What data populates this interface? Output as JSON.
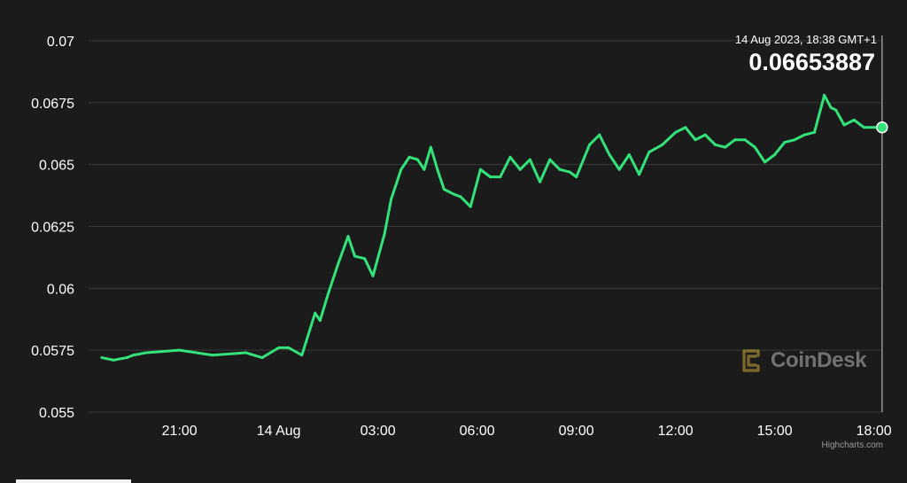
{
  "tooltip": {
    "time": "14 Aug 2023, 18:38 GMT+1",
    "value": "0.06653887"
  },
  "watermark": "CoinDesk",
  "credits": "Highcharts.com",
  "colors": {
    "up": "#33e37a",
    "down": "#e5332a",
    "grid": "#3a3a3a",
    "background": "#1b1b1b"
  },
  "chart_data": {
    "type": "line",
    "title": "",
    "xlabel": "",
    "ylabel": "",
    "ylim": [
      0.055,
      0.07
    ],
    "yticks": [
      "0.055",
      "0.0575",
      "0.06",
      "0.0625",
      "0.065",
      "0.0675",
      "0.07"
    ],
    "xlim": [
      -2.75,
      21.25
    ],
    "xticks": [
      {
        "label": "21:00",
        "x": 0
      },
      {
        "label": "14 Aug",
        "x": 3
      },
      {
        "label": "03:00",
        "x": 6
      },
      {
        "label": "06:00",
        "x": 9
      },
      {
        "label": "09:00",
        "x": 12
      },
      {
        "label": "12:00",
        "x": 15
      },
      {
        "label": "15:00",
        "x": 18
      },
      {
        "label": "18:00",
        "x": 21
      }
    ],
    "grid": true,
    "legend": "none",
    "series": [
      {
        "color_up": "#33e37a",
        "color_down": "#e5332a",
        "x": [
          -2.35,
          -2.0,
          -1.6,
          -1.4,
          -1.0,
          0.0,
          1.0,
          2.0,
          2.5,
          3.0,
          3.3,
          3.7,
          4.1,
          4.25,
          4.5,
          4.8,
          5.1,
          5.3,
          5.6,
          5.85,
          6.2,
          6.4,
          6.7,
          6.95,
          7.2,
          7.4,
          7.6,
          7.8,
          8.0,
          8.3,
          8.5,
          8.8,
          9.1,
          9.4,
          9.7,
          10.0,
          10.3,
          10.6,
          10.9,
          11.2,
          11.5,
          11.8,
          12.0,
          12.4,
          12.7,
          13.0,
          13.3,
          13.6,
          13.9,
          14.2,
          14.6,
          15.0,
          15.3,
          15.6,
          15.9,
          16.2,
          16.5,
          16.8,
          17.1,
          17.4,
          17.7,
          18.0,
          18.3,
          18.6,
          18.9,
          19.2,
          19.5,
          19.7,
          19.85,
          20.1,
          20.4,
          20.7,
          21.0,
          21.3
        ],
        "y": [
          0.0572,
          0.0571,
          0.0572,
          0.0573,
          0.0574,
          0.0575,
          0.0573,
          0.0574,
          0.0572,
          0.0576,
          0.0576,
          0.0573,
          0.059,
          0.0587,
          0.0598,
          0.061,
          0.0621,
          0.0613,
          0.0612,
          0.0605,
          0.0622,
          0.0636,
          0.0648,
          0.0653,
          0.0652,
          0.0648,
          0.0657,
          0.0648,
          0.064,
          0.0638,
          0.0637,
          0.0633,
          0.0648,
          0.0645,
          0.0645,
          0.0653,
          0.0648,
          0.0652,
          0.0643,
          0.0652,
          0.0648,
          0.0647,
          0.0645,
          0.0658,
          0.0662,
          0.0654,
          0.0648,
          0.0654,
          0.0646,
          0.0655,
          0.0658,
          0.0663,
          0.0665,
          0.066,
          0.0662,
          0.0658,
          0.0657,
          0.066,
          0.066,
          0.0657,
          0.0651,
          0.0654,
          0.0659,
          0.066,
          0.0662,
          0.0663,
          0.0678,
          0.0673,
          0.0672,
          0.0666,
          0.0668,
          0.0665,
          0.0665,
          0.0665
        ]
      }
    ]
  }
}
